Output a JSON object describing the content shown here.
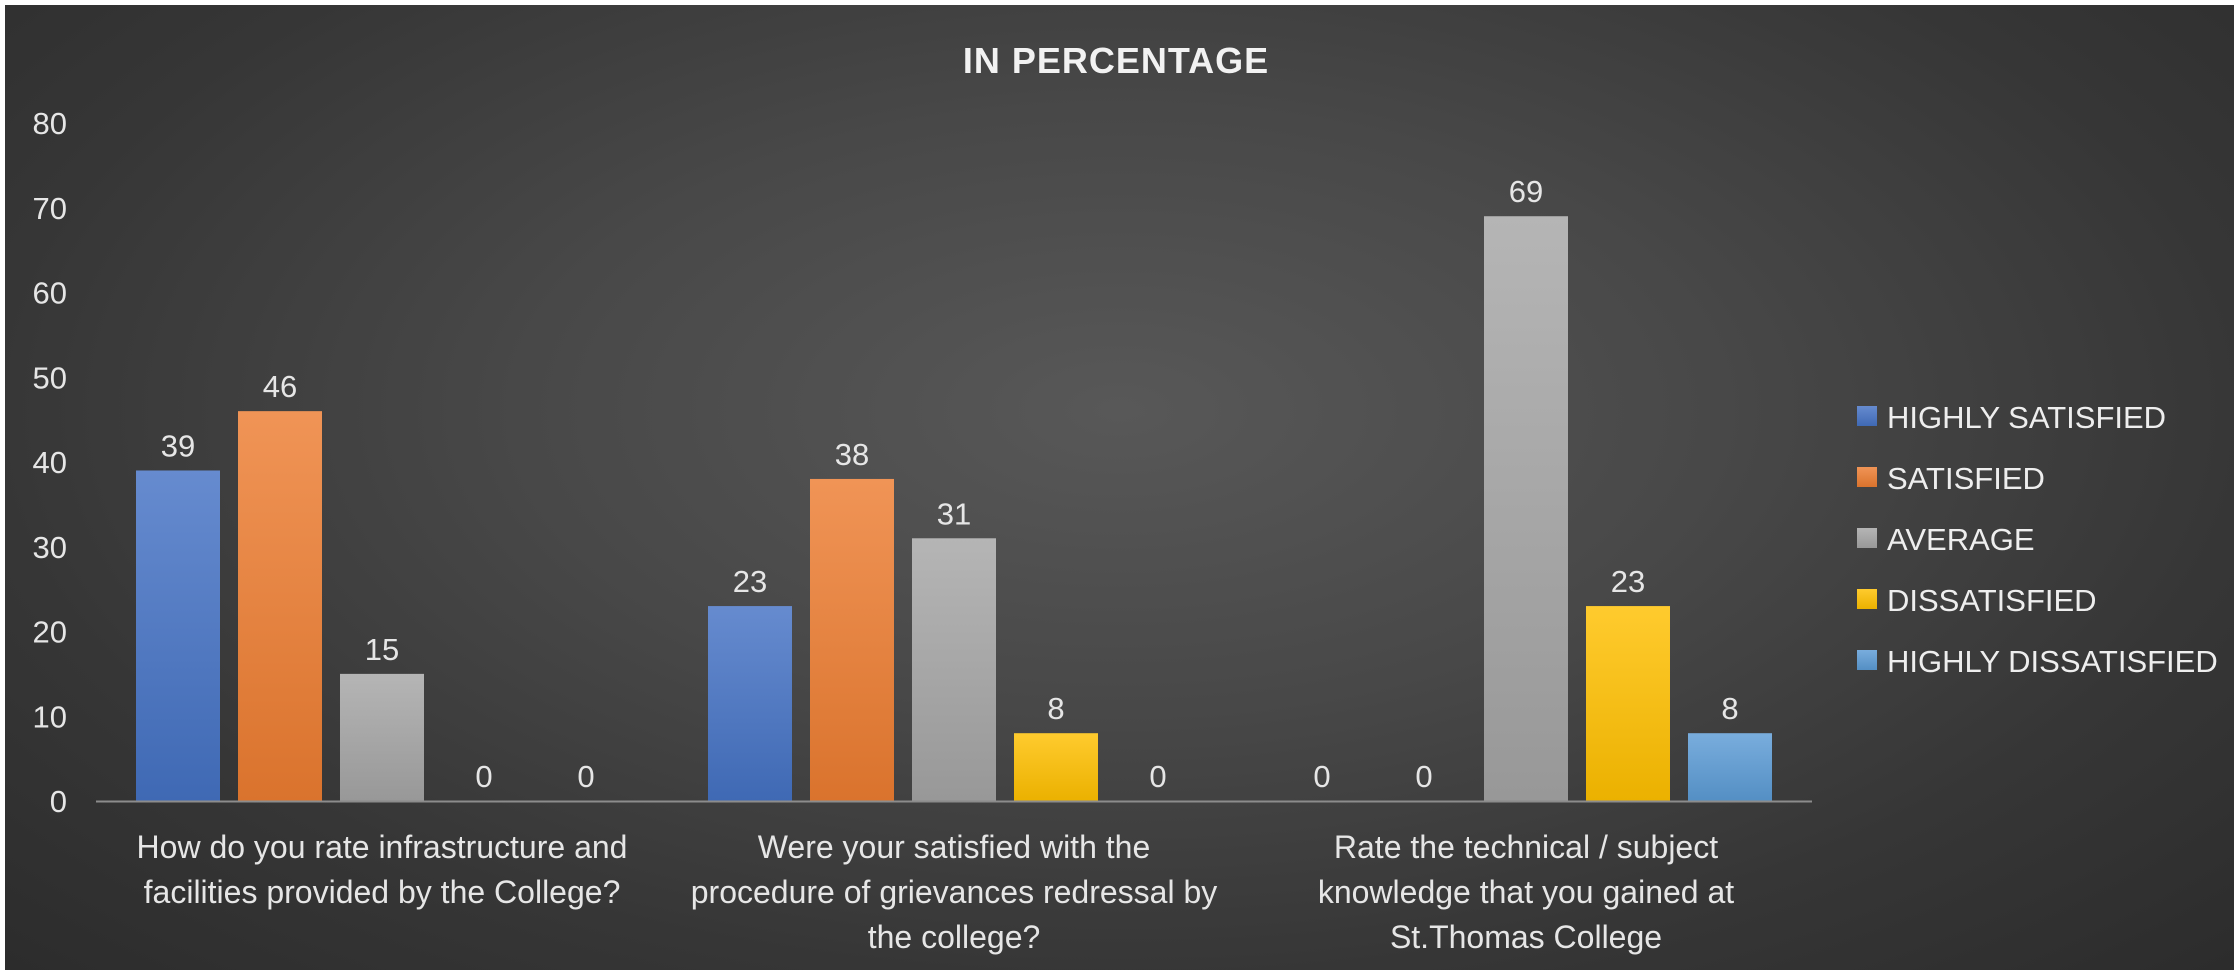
{
  "chart_data": {
    "type": "bar",
    "title": "IN PERCENTAGE",
    "xlabel": "",
    "ylabel": "",
    "ylim": [
      0,
      80
    ],
    "yticks": [
      0,
      10,
      20,
      30,
      40,
      50,
      60,
      70,
      80
    ],
    "grid": false,
    "legend_position": "right",
    "categories": [
      [
        "How do you rate infrastructure and",
        "facilities provided by the College?"
      ],
      [
        "Were your satisfied with the",
        "procedure of grievances redressal by",
        "the college?"
      ],
      [
        "Rate the technical / subject",
        "knowledge that you gained at",
        "St.Thomas College"
      ]
    ],
    "series": [
      {
        "name": "HIGHLY SATISFIED",
        "color": "#4472c4",
        "values": [
          39,
          23,
          0
        ]
      },
      {
        "name": "SATISFIED",
        "color": "#ed7d31",
        "values": [
          46,
          38,
          0
        ]
      },
      {
        "name": "AVERAGE",
        "color": "#a5a5a5",
        "values": [
          15,
          31,
          69
        ]
      },
      {
        "name": "DISSATISFIED",
        "color": "#ffc000",
        "values": [
          0,
          8,
          23
        ]
      },
      {
        "name": "HIGHLY DISSATISFIED",
        "color": "#5b9bd5",
        "values": [
          0,
          0,
          8
        ]
      }
    ]
  }
}
